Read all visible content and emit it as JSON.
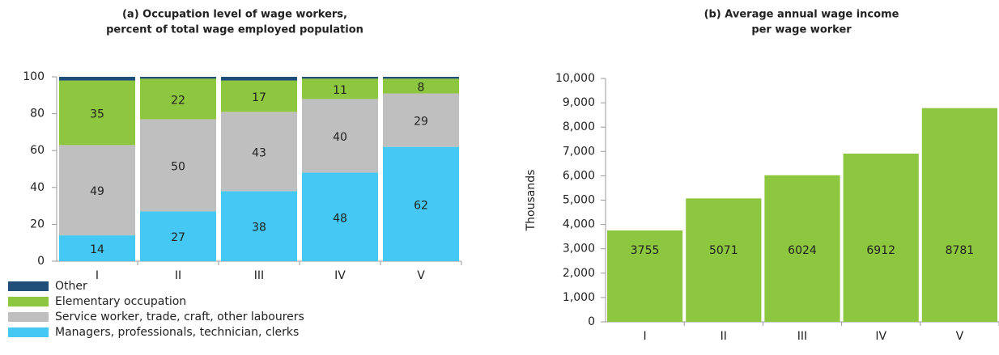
{
  "chart_data": [
    {
      "type": "stacked_bar",
      "title": [
        "(a) Occupation level of wage workers,",
        "percent of total wage employed population"
      ],
      "categories": [
        "I",
        "II",
        "III",
        "IV",
        "V"
      ],
      "series": [
        {
          "name": "Managers, professionals, technician, clerks",
          "color": "#45c8f3",
          "values": [
            14,
            27,
            38,
            48,
            62
          ]
        },
        {
          "name": "Service worker, trade, craft, other labourers",
          "color": "#bfbfbf",
          "values": [
            49,
            50,
            43,
            40,
            29
          ]
        },
        {
          "name": "Elementary occupation",
          "color": "#8dc63f",
          "values": [
            35,
            22,
            17,
            11,
            8
          ]
        },
        {
          "name": "Other",
          "color": "#1f4e79",
          "values": [
            2,
            1,
            2,
            1,
            1
          ]
        }
      ],
      "ylim": [
        0,
        100
      ],
      "yticks": [
        0,
        20,
        40,
        60,
        80,
        100
      ]
    },
    {
      "type": "bar",
      "title": [
        "(b) Average annual wage income",
        "per wage worker"
      ],
      "ylabel": "Thousands",
      "categories": [
        "I",
        "II",
        "III",
        "IV",
        "V"
      ],
      "values": [
        3755,
        5071,
        6024,
        6912,
        8781
      ],
      "color": "#8dc63f",
      "ylim": [
        0,
        10000
      ],
      "yticks": [
        0,
        {
          "value": 1000,
          "label": "1,000"
        },
        {
          "value": 2000,
          "label": "2,000"
        },
        {
          "value": 3000,
          "label": "3,000"
        },
        {
          "value": 4000,
          "label": "4,000"
        },
        {
          "value": 5000,
          "label": "5,000"
        },
        {
          "value": 6000,
          "label": "6,000"
        },
        {
          "value": 7000,
          "label": "7,000"
        },
        {
          "value": 8000,
          "label": "8,000"
        },
        {
          "value": 9000,
          "label": "9,000"
        },
        {
          "value": 10000,
          "label": "10,000"
        }
      ]
    }
  ]
}
